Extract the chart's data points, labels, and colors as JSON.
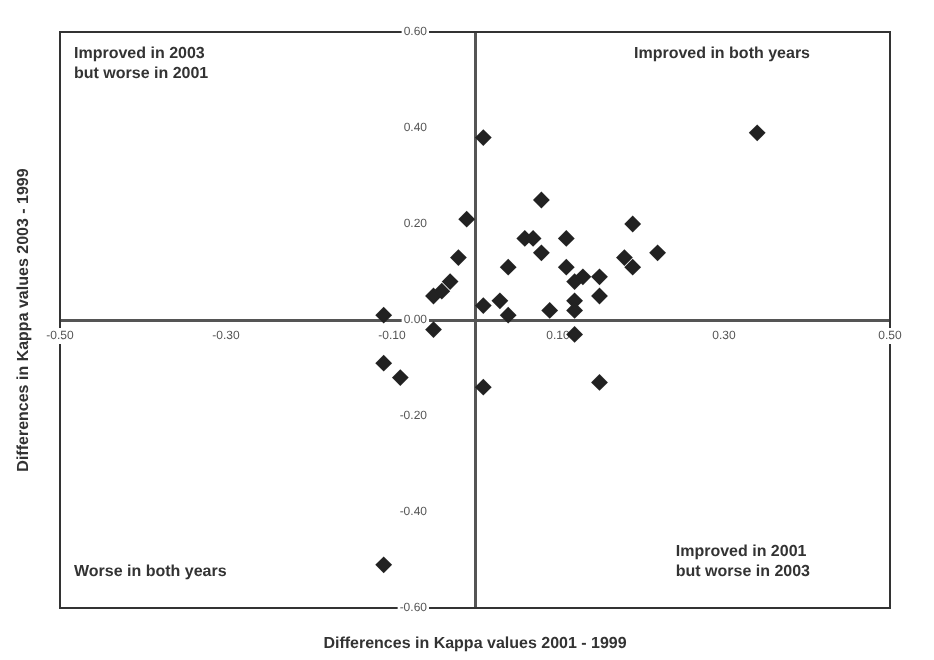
{
  "chart_data": {
    "type": "scatter",
    "xlabel": "Differences in Kappa values 2001 - 1999",
    "ylabel": "Differences in Kappa values 2003 - 1999",
    "annotations": [
      "Improved in 2003\nbut worse in 2001",
      "Improved in both years",
      "Worse in both years",
      "Improved in 2001\nbut worse in 2003"
    ],
    "series": [
      {
        "color": "#222222",
        "x": [
          0.01,
          0.34,
          0.08,
          -0.01,
          0.06,
          0.07,
          0.11,
          0.19,
          0.08,
          0.22,
          0.18,
          0.19,
          0.04,
          0.11,
          -0.02,
          -0.03,
          -0.04,
          -0.05,
          0.13,
          0.15,
          0.12,
          0.15,
          0.12,
          0.03,
          0.01,
          0.09,
          0.12,
          0.04,
          -0.11,
          -0.05,
          0.12,
          -0.11,
          -0.09,
          0.01,
          0.15,
          -0.11
        ],
        "values": [
          0.38,
          0.39,
          0.25,
          0.21,
          0.17,
          0.17,
          0.17,
          0.2,
          0.14,
          0.14,
          0.13,
          0.11,
          0.11,
          0.11,
          0.13,
          0.08,
          0.06,
          0.05,
          0.09,
          0.09,
          0.08,
          0.05,
          0.04,
          0.04,
          0.03,
          0.02,
          0.02,
          0.01,
          0.01,
          -0.02,
          -0.03,
          -0.09,
          -0.12,
          -0.14,
          -0.13,
          -0.51
        ]
      }
    ],
    "xlim": [
      -0.5,
      0.5
    ],
    "xticks": [
      {
        "value": -0.5,
        "label": "-0.50"
      },
      {
        "value": -0.3,
        "label": "-0.30"
      },
      {
        "value": -0.1,
        "label": "-0.10"
      },
      {
        "value": 0.1,
        "label": "0.10"
      },
      {
        "value": 0.3,
        "label": "0.30"
      },
      {
        "value": 0.5,
        "label": "0.50"
      }
    ],
    "ylim": [
      -0.6,
      0.6
    ],
    "yticks": [
      {
        "value": -0.6,
        "label": "-0.60"
      },
      {
        "value": -0.4,
        "label": "-0.40"
      },
      {
        "value": -0.2,
        "label": "-0.20"
      },
      {
        "value": 0,
        "label": "0.00"
      },
      {
        "value": 0.2,
        "label": "0.20"
      },
      {
        "value": 0.4,
        "label": "0.40"
      },
      {
        "value": 0.6,
        "label": "0.60"
      }
    ],
    "grid": false,
    "legend": false,
    "marker": "diamond"
  }
}
